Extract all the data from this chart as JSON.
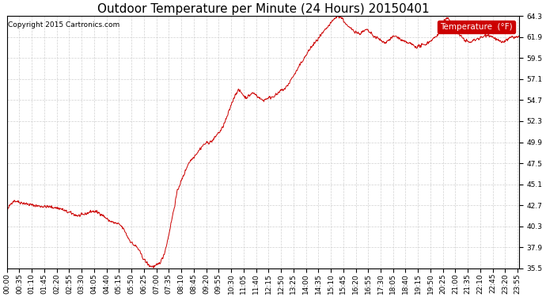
{
  "title": "Outdoor Temperature per Minute (24 Hours) 20150401",
  "copyright_text": "Copyright 2015 Cartronics.com",
  "legend_label": "Temperature  (°F)",
  "background_color": "#ffffff",
  "plot_background_color": "#ffffff",
  "line_color": "#cc0000",
  "legend_bg_color": "#cc0000",
  "legend_text_color": "#ffffff",
  "yticks": [
    35.5,
    37.9,
    40.3,
    42.7,
    45.1,
    47.5,
    49.9,
    52.3,
    54.7,
    57.1,
    59.5,
    61.9,
    64.3
  ],
  "ymin": 35.5,
  "ymax": 64.3,
  "grid_color": "#cccccc",
  "grid_style": "--",
  "title_fontsize": 11,
  "tick_fontsize": 6.5,
  "copyright_fontsize": 6.5,
  "xtick_interval_minutes": 35,
  "waypoints": [
    [
      0,
      42.0
    ],
    [
      20,
      43.2
    ],
    [
      40,
      43.0
    ],
    [
      60,
      42.8
    ],
    [
      90,
      42.6
    ],
    [
      120,
      42.5
    ],
    [
      150,
      42.3
    ],
    [
      165,
      42.0
    ],
    [
      180,
      41.8
    ],
    [
      200,
      41.5
    ],
    [
      220,
      41.7
    ],
    [
      240,
      42.0
    ],
    [
      260,
      41.8
    ],
    [
      270,
      41.5
    ],
    [
      285,
      41.0
    ],
    [
      300,
      40.7
    ],
    [
      315,
      40.5
    ],
    [
      330,
      39.8
    ],
    [
      340,
      39.0
    ],
    [
      355,
      38.2
    ],
    [
      365,
      37.9
    ],
    [
      375,
      37.2
    ],
    [
      385,
      36.5
    ],
    [
      395,
      36.0
    ],
    [
      400,
      35.8
    ],
    [
      410,
      35.7
    ],
    [
      420,
      35.8
    ],
    [
      430,
      36.2
    ],
    [
      440,
      37.0
    ],
    [
      450,
      38.5
    ],
    [
      460,
      40.5
    ],
    [
      470,
      42.5
    ],
    [
      480,
      44.5
    ],
    [
      490,
      45.5
    ],
    [
      500,
      46.5
    ],
    [
      510,
      47.5
    ],
    [
      520,
      48.0
    ],
    [
      530,
      48.5
    ],
    [
      540,
      49.0
    ],
    [
      550,
      49.5
    ],
    [
      560,
      49.8
    ],
    [
      570,
      49.9
    ],
    [
      580,
      50.2
    ],
    [
      590,
      50.8
    ],
    [
      600,
      51.2
    ],
    [
      610,
      52.0
    ],
    [
      620,
      53.0
    ],
    [
      630,
      54.2
    ],
    [
      640,
      55.2
    ],
    [
      650,
      55.8
    ],
    [
      660,
      55.5
    ],
    [
      670,
      55.0
    ],
    [
      680,
      55.2
    ],
    [
      690,
      55.5
    ],
    [
      700,
      55.3
    ],
    [
      710,
      54.9
    ],
    [
      720,
      54.7
    ],
    [
      730,
      54.9
    ],
    [
      740,
      55.0
    ],
    [
      750,
      55.2
    ],
    [
      760,
      55.4
    ],
    [
      770,
      55.8
    ],
    [
      780,
      56.0
    ],
    [
      790,
      56.5
    ],
    [
      800,
      57.2
    ],
    [
      810,
      57.8
    ],
    [
      820,
      58.5
    ],
    [
      830,
      59.2
    ],
    [
      840,
      59.8
    ],
    [
      850,
      60.5
    ],
    [
      860,
      61.0
    ],
    [
      870,
      61.5
    ],
    [
      880,
      62.0
    ],
    [
      890,
      62.5
    ],
    [
      900,
      63.0
    ],
    [
      910,
      63.5
    ],
    [
      920,
      64.0
    ],
    [
      930,
      64.3
    ],
    [
      940,
      64.1
    ],
    [
      950,
      63.5
    ],
    [
      960,
      63.0
    ],
    [
      970,
      62.8
    ],
    [
      980,
      62.5
    ],
    [
      990,
      62.3
    ],
    [
      1000,
      62.5
    ],
    [
      1010,
      62.7
    ],
    [
      1020,
      62.4
    ],
    [
      1030,
      62.0
    ],
    [
      1040,
      61.8
    ],
    [
      1050,
      61.5
    ],
    [
      1060,
      61.3
    ],
    [
      1070,
      61.5
    ],
    [
      1080,
      61.8
    ],
    [
      1090,
      62.0
    ],
    [
      1100,
      61.8
    ],
    [
      1110,
      61.5
    ],
    [
      1120,
      61.3
    ],
    [
      1130,
      61.2
    ],
    [
      1140,
      61.0
    ],
    [
      1150,
      60.8
    ],
    [
      1160,
      60.9
    ],
    [
      1170,
      61.0
    ],
    [
      1180,
      61.2
    ],
    [
      1190,
      61.5
    ],
    [
      1200,
      61.8
    ],
    [
      1210,
      62.2
    ],
    [
      1220,
      63.0
    ],
    [
      1230,
      63.8
    ],
    [
      1240,
      64.0
    ],
    [
      1250,
      63.5
    ],
    [
      1260,
      62.8
    ],
    [
      1270,
      62.2
    ],
    [
      1280,
      61.8
    ],
    [
      1290,
      61.5
    ],
    [
      1300,
      61.3
    ],
    [
      1310,
      61.5
    ],
    [
      1320,
      61.7
    ],
    [
      1330,
      61.8
    ],
    [
      1340,
      62.0
    ],
    [
      1350,
      62.2
    ],
    [
      1360,
      62.0
    ],
    [
      1370,
      61.8
    ],
    [
      1380,
      61.5
    ],
    [
      1390,
      61.3
    ],
    [
      1400,
      61.5
    ],
    [
      1410,
      61.7
    ],
    [
      1420,
      61.9
    ],
    [
      1439,
      61.9
    ]
  ]
}
